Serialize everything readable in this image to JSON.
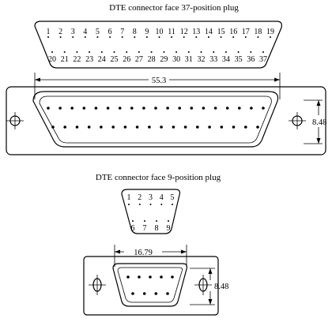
{
  "titles": {
    "db37": "DTE connector face 37-position plug",
    "db9": "DTE connector face 9-position plug"
  },
  "db37": {
    "top_pins": [
      "1",
      "2",
      "3",
      "4",
      "5",
      "6",
      "7",
      "8",
      "9",
      "10",
      "11",
      "12",
      "13",
      "14",
      "15",
      "16",
      "17",
      "18",
      "19"
    ],
    "bottom_pins": [
      "20",
      "21",
      "22",
      "23",
      "24",
      "25",
      "26",
      "27",
      "28",
      "29",
      "30",
      "31",
      "32",
      "33",
      "34",
      "35",
      "36",
      "37"
    ],
    "width_dim": "55.3",
    "height_dim": "8.48"
  },
  "db9": {
    "top_pins": [
      "1",
      "2",
      "3",
      "4",
      "5"
    ],
    "bottom_pins": [
      "6",
      "7",
      "8",
      "9"
    ],
    "width_dim": "16.79",
    "height_dim": "8.48"
  }
}
